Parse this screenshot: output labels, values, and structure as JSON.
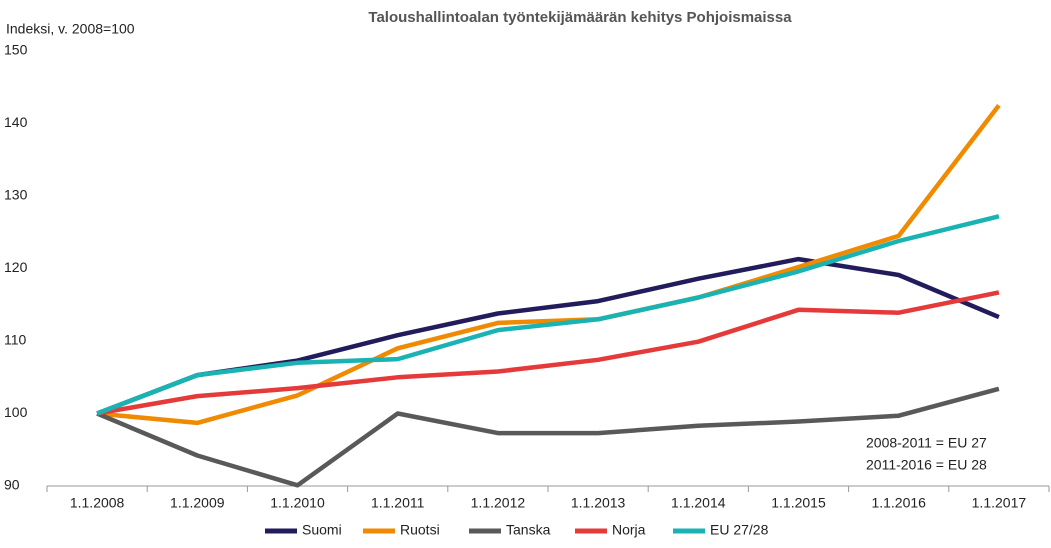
{
  "chart_data": {
    "type": "line",
    "title": "Taloushallintoalan työntekijämäärän kehitys Pohjoismaissa",
    "y_label": "Indeksi, v. 2008=100",
    "categories": [
      "1.1.2008",
      "1.1.2009",
      "1.1.2010",
      "1.1.2011",
      "1.1.2012",
      "1.1.2013",
      "1.1.2014",
      "1.1.2015",
      "1.1.2016",
      "1.1.2017"
    ],
    "series": [
      {
        "name": "Suomi",
        "color": "#221c5c",
        "values": [
          100,
          105.3,
          107.3,
          110.8,
          113.8,
          115.5,
          118.6,
          121.3,
          119.1,
          113.3
        ]
      },
      {
        "name": "Ruotsi",
        "color": "#f08a00",
        "values": [
          100,
          98.7,
          102.5,
          109,
          112.5,
          113,
          116,
          120.2,
          124.5,
          142.5
        ]
      },
      {
        "name": "Tanska",
        "color": "#595959",
        "values": [
          100,
          94.2,
          90.1,
          100,
          97.3,
          97.3,
          98.3,
          98.9,
          99.7,
          103.4
        ]
      },
      {
        "name": "Norja",
        "color": "#e63a3a",
        "values": [
          100,
          102.4,
          103.5,
          105,
          105.8,
          107.4,
          109.9,
          114.3,
          113.9,
          116.7
        ]
      },
      {
        "name": "EU 27/28",
        "color": "#1ab3b3",
        "values": [
          100,
          105.3,
          107,
          107.5,
          111.5,
          113,
          116,
          119.6,
          123.8,
          127.2
        ]
      }
    ],
    "ylim": [
      90,
      150
    ],
    "yticks": [
      90,
      100,
      110,
      120,
      130,
      140,
      150
    ],
    "grid": false,
    "legend": "bottom",
    "annotations": [
      "2008-2011 = EU 27",
      "2011-2016 = EU 28"
    ]
  }
}
